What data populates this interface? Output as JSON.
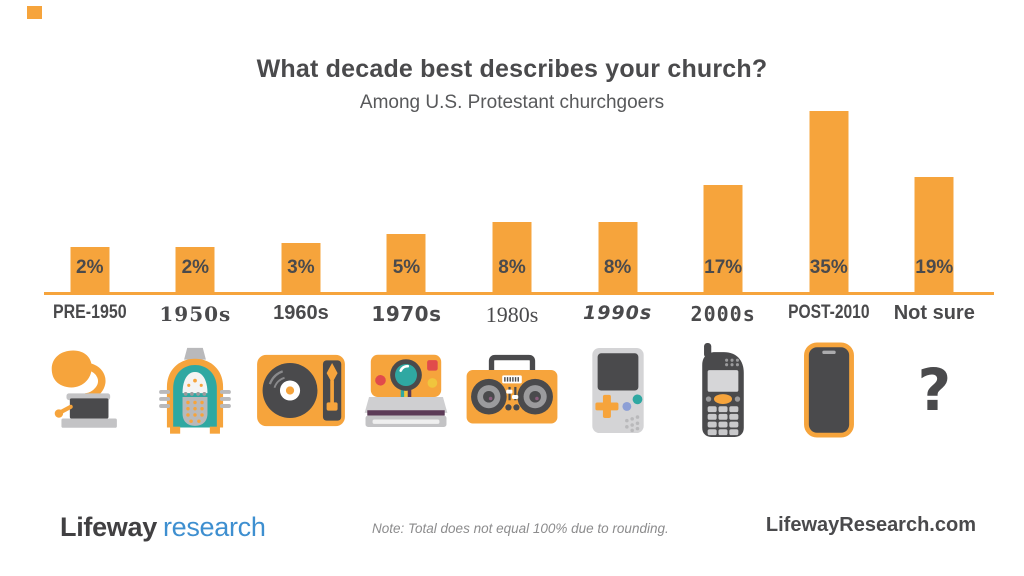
{
  "header": {
    "title": "What decade best describes your church?",
    "subtitle": "Among U.S. Protestant churchgoers"
  },
  "chart_data": {
    "type": "bar",
    "title": "What decade best describes your church?",
    "subtitle": "Among U.S. Protestant churchgoers",
    "categories": [
      "PRE-1950",
      "1950s",
      "1960s",
      "1970s",
      "1980s",
      "1990s",
      "2000s",
      "POST-2010",
      "Not sure"
    ],
    "values": [
      2,
      2,
      3,
      5,
      8,
      8,
      17,
      35,
      19
    ],
    "value_labels": [
      "2%",
      "2%",
      "3%",
      "5%",
      "8%",
      "8%",
      "17%",
      "35%",
      "19%"
    ],
    "icons": [
      "gramophone",
      "jukebox",
      "record-player",
      "instant-camera",
      "boombox",
      "handheld-game-console",
      "cell-phone",
      "smartphone",
      "question-mark"
    ],
    "unit": "percent",
    "ylim": [
      0,
      40
    ],
    "grid": false,
    "legend": false,
    "bar_color": "#F6A43C",
    "value_label_color": "#4A4A4C",
    "baseline_color": "#F6A43C"
  },
  "footer": {
    "logo_primary": "Lifeway",
    "logo_secondary": "research",
    "note": "Note: Total does not equal 100% due to rounding.",
    "website": "LifewayResearch.com"
  },
  "colors": {
    "accent_orange": "#F6A43C",
    "dark_gray": "#4A4A4C",
    "logo_blue": "#3E8FD0"
  }
}
